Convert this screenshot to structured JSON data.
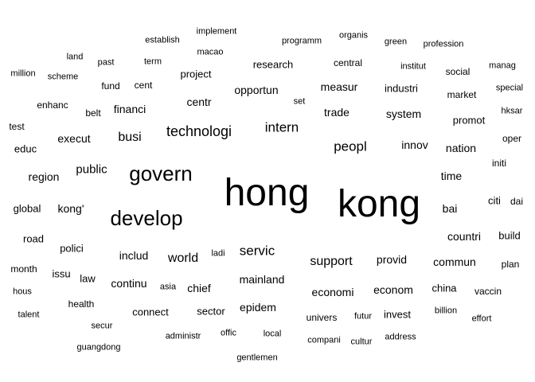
{
  "cloud": {
    "words": [
      {
        "text": "hong",
        "weight": 48
      },
      {
        "text": "kong",
        "weight": 48
      },
      {
        "text": "govern",
        "weight": 26
      },
      {
        "text": "develop",
        "weight": 26
      },
      {
        "text": "technologi",
        "weight": 18
      },
      {
        "text": "intern",
        "weight": 17
      },
      {
        "text": "peopl",
        "weight": 17
      },
      {
        "text": "servic",
        "weight": 17
      },
      {
        "text": "support",
        "weight": 16
      },
      {
        "text": "world",
        "weight": 16
      },
      {
        "text": "busi",
        "weight": 16
      },
      {
        "text": "public",
        "weight": 15
      },
      {
        "text": "execut",
        "weight": 14
      },
      {
        "text": "centr",
        "weight": 14
      },
      {
        "text": "opportun",
        "weight": 14
      },
      {
        "text": "trade",
        "weight": 14
      },
      {
        "text": "system",
        "weight": 14
      },
      {
        "text": "innov",
        "weight": 14
      },
      {
        "text": "nation",
        "weight": 14
      },
      {
        "text": "time",
        "weight": 14
      },
      {
        "text": "bai",
        "weight": 14
      },
      {
        "text": "countri",
        "weight": 14
      },
      {
        "text": "region",
        "weight": 14
      },
      {
        "text": "kong'",
        "weight": 14
      },
      {
        "text": "financi",
        "weight": 14
      },
      {
        "text": "includ",
        "weight": 14
      },
      {
        "text": "chief",
        "weight": 14
      },
      {
        "text": "mainland",
        "weight": 14
      },
      {
        "text": "provid",
        "weight": 14
      },
      {
        "text": "commun",
        "weight": 14
      },
      {
        "text": "continu",
        "weight": 14
      },
      {
        "text": "economi",
        "weight": 14
      },
      {
        "text": "econom",
        "weight": 14
      },
      {
        "text": "epidem",
        "weight": 14
      },
      {
        "text": "measur",
        "weight": 14
      },
      {
        "text": "industri",
        "weight": 13
      },
      {
        "text": "promot",
        "weight": 13
      },
      {
        "text": "polici",
        "weight": 13
      },
      {
        "text": "global",
        "weight": 13
      },
      {
        "text": "citi",
        "weight": 13
      },
      {
        "text": "build",
        "weight": 13
      },
      {
        "text": "research",
        "weight": 13
      },
      {
        "text": "project",
        "weight": 13
      },
      {
        "text": "connect",
        "weight": 13
      },
      {
        "text": "sector",
        "weight": 13
      },
      {
        "text": "invest",
        "weight": 13
      },
      {
        "text": "china",
        "weight": 13
      },
      {
        "text": "road",
        "weight": 13
      },
      {
        "text": "law",
        "weight": 13
      },
      {
        "text": "issu",
        "weight": 13
      },
      {
        "text": "educ",
        "weight": 13
      },
      {
        "text": "enhanc",
        "weight": 12
      },
      {
        "text": "belt",
        "weight": 12
      },
      {
        "text": "fund",
        "weight": 12
      },
      {
        "text": "cent",
        "weight": 12
      },
      {
        "text": "oper",
        "weight": 12
      },
      {
        "text": "initi",
        "weight": 12
      },
      {
        "text": "dai",
        "weight": 12
      },
      {
        "text": "plan",
        "weight": 12
      },
      {
        "text": "month",
        "weight": 12
      },
      {
        "text": "univers",
        "weight": 12
      },
      {
        "text": "market",
        "weight": 12
      },
      {
        "text": "social",
        "weight": 12
      },
      {
        "text": "health",
        "weight": 12
      },
      {
        "text": "central",
        "weight": 12
      },
      {
        "text": "vaccin",
        "weight": 12
      },
      {
        "text": "test",
        "weight": 12
      },
      {
        "text": "hous",
        "weight": 11
      },
      {
        "text": "futur",
        "weight": 11
      },
      {
        "text": "local",
        "weight": 11
      },
      {
        "text": "offic",
        "weight": 11
      },
      {
        "text": "cultur",
        "weight": 11
      },
      {
        "text": "address",
        "weight": 11
      },
      {
        "text": "compani",
        "weight": 11
      },
      {
        "text": "billion",
        "weight": 11
      },
      {
        "text": "effort",
        "weight": 11
      },
      {
        "text": "administr",
        "weight": 11
      },
      {
        "text": "secur",
        "weight": 11
      },
      {
        "text": "talent",
        "weight": 11
      },
      {
        "text": "guangdong",
        "weight": 11
      },
      {
        "text": "gentlemen",
        "weight": 11
      },
      {
        "text": "asia",
        "weight": 11
      },
      {
        "text": "ladi",
        "weight": 11
      },
      {
        "text": "term",
        "weight": 11
      },
      {
        "text": "past",
        "weight": 11
      },
      {
        "text": "land",
        "weight": 11
      },
      {
        "text": "macao",
        "weight": 11
      },
      {
        "text": "implement",
        "weight": 11
      },
      {
        "text": "establish",
        "weight": 11
      },
      {
        "text": "programm",
        "weight": 11
      },
      {
        "text": "organis",
        "weight": 11
      },
      {
        "text": "green",
        "weight": 11
      },
      {
        "text": "profession",
        "weight": 11
      },
      {
        "text": "institut",
        "weight": 11
      },
      {
        "text": "manag",
        "weight": 11
      },
      {
        "text": "special",
        "weight": 11
      },
      {
        "text": "hksar",
        "weight": 11
      },
      {
        "text": "set",
        "weight": 11
      },
      {
        "text": "million",
        "weight": 11
      },
      {
        "text": "scheme",
        "weight": 11
      }
    ]
  }
}
